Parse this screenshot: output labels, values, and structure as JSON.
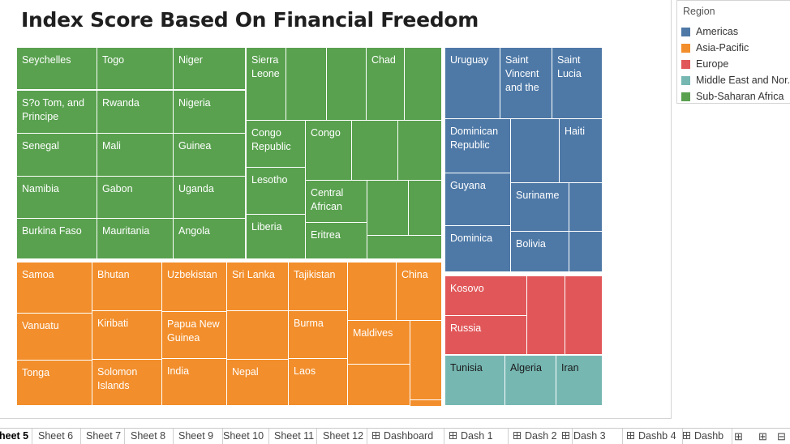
{
  "title": "Index Score Based On Financial Freedom",
  "colors": {
    "Americas": "#4e79a7",
    "Asia-Pacific": "#f28e2b",
    "Europe": "#e15759",
    "Middle East and North Africa": "#76b7b2",
    "Sub-Saharan Africa": "#59a14f"
  },
  "legend": {
    "title": "Region",
    "items": [
      {
        "label": "Americas",
        "color": "#4e79a7"
      },
      {
        "label": "Asia-Pacific",
        "color": "#f28e2b"
      },
      {
        "label": "Europe",
        "color": "#e15759"
      },
      {
        "label": "Middle East and Nor..",
        "color": "#76b7b2"
      },
      {
        "label": "Sub-Saharan Africa",
        "color": "#59a14f"
      }
    ]
  },
  "tabs": [
    {
      "label": "heet 5",
      "active": true,
      "icon": ""
    },
    {
      "label": "Sheet 6",
      "icon": ""
    },
    {
      "label": "Sheet 7",
      "icon": ""
    },
    {
      "label": "Sheet 8",
      "icon": ""
    },
    {
      "label": "Sheet 9",
      "icon": ""
    },
    {
      "label": "Sheet 10",
      "icon": ""
    },
    {
      "label": "Sheet 11",
      "icon": ""
    },
    {
      "label": "Sheet 12",
      "icon": ""
    },
    {
      "label": "Dashboard",
      "icon": "dashboard-icon"
    },
    {
      "label": "Dash 1",
      "icon": "dashboard-icon"
    },
    {
      "label": "Dash 2",
      "icon": "dashboard-icon"
    },
    {
      "label": "Dash 3",
      "icon": "dashboard-icon"
    },
    {
      "label": "Dashb 4",
      "icon": "dashboard-icon"
    },
    {
      "label": "Dashb",
      "icon": "dashboard-icon"
    }
  ],
  "tab_buttons": [
    {
      "name": "new-worksheet-icon",
      "glyph": "⊞"
    },
    {
      "name": "new-dashboard-icon",
      "glyph": "⊞"
    },
    {
      "name": "new-story-icon",
      "glyph": "⊟"
    }
  ],
  "cells": [
    {
      "region": "Sub-Saharan Africa",
      "label": "Seychelles"
    },
    {
      "region": "Sub-Saharan Africa",
      "label": "Togo"
    },
    {
      "region": "Sub-Saharan Africa",
      "label": "Niger"
    },
    {
      "region": "Sub-Saharan Africa",
      "label": "Sierra Leone"
    },
    {
      "region": "Sub-Saharan Africa",
      "label": ""
    },
    {
      "region": "Sub-Saharan Africa",
      "label": ""
    },
    {
      "region": "Sub-Saharan Africa",
      "label": "Chad"
    },
    {
      "region": "Sub-Saharan Africa",
      "label": ""
    },
    {
      "region": "Sub-Saharan Africa",
      "label": "S?o Tom, and Principe"
    },
    {
      "region": "Sub-Saharan Africa",
      "label": "Rwanda"
    },
    {
      "region": "Sub-Saharan Africa",
      "label": "Nigeria"
    },
    {
      "region": "Sub-Saharan Africa",
      "label": "Congo Republic"
    },
    {
      "region": "Sub-Saharan Africa",
      "label": "Congo"
    },
    {
      "region": "Sub-Saharan Africa",
      "label": ""
    },
    {
      "region": "Sub-Saharan Africa",
      "label": ""
    },
    {
      "region": "Sub-Saharan Africa",
      "label": "Senegal"
    },
    {
      "region": "Sub-Saharan Africa",
      "label": "Mali"
    },
    {
      "region": "Sub-Saharan Africa",
      "label": "Guinea"
    },
    {
      "region": "Sub-Saharan Africa",
      "label": "Lesotho"
    },
    {
      "region": "Sub-Saharan Africa",
      "label": "Namibia"
    },
    {
      "region": "Sub-Saharan Africa",
      "label": "Gabon"
    },
    {
      "region": "Sub-Saharan Africa",
      "label": "Uganda"
    },
    {
      "region": "Sub-Saharan Africa",
      "label": "Central African"
    },
    {
      "region": "Sub-Saharan Africa",
      "label": ""
    },
    {
      "region": "Sub-Saharan Africa",
      "label": ""
    },
    {
      "region": "Sub-Saharan Africa",
      "label": "Liberia"
    },
    {
      "region": "Sub-Saharan Africa",
      "label": "Burkina Faso"
    },
    {
      "region": "Sub-Saharan Africa",
      "label": "Mauritania"
    },
    {
      "region": "Sub-Saharan Africa",
      "label": "Angola"
    },
    {
      "region": "Sub-Saharan Africa",
      "label": "Eritrea"
    },
    {
      "region": "Sub-Saharan Africa",
      "label": ""
    },
    {
      "region": "Americas",
      "label": "Uruguay"
    },
    {
      "region": "Americas",
      "label": "Saint Vincent and the"
    },
    {
      "region": "Americas",
      "label": "Saint Lucia"
    },
    {
      "region": "Americas",
      "label": "Dominican Republic"
    },
    {
      "region": "Americas",
      "label": ""
    },
    {
      "region": "Americas",
      "label": "Haiti"
    },
    {
      "region": "Americas",
      "label": "Guyana"
    },
    {
      "region": "Americas",
      "label": "Suriname"
    },
    {
      "region": "Americas",
      "label": ""
    },
    {
      "region": "Americas",
      "label": "Dominica"
    },
    {
      "region": "Americas",
      "label": "Bolivia"
    },
    {
      "region": "Americas",
      "label": ""
    },
    {
      "region": "Asia-Pacific",
      "label": "Samoa"
    },
    {
      "region": "Asia-Pacific",
      "label": "Bhutan"
    },
    {
      "region": "Asia-Pacific",
      "label": "Uzbekistan"
    },
    {
      "region": "Asia-Pacific",
      "label": "Sri Lanka"
    },
    {
      "region": "Asia-Pacific",
      "label": "Tajikistan"
    },
    {
      "region": "Asia-Pacific",
      "label": ""
    },
    {
      "region": "Asia-Pacific",
      "label": "China"
    },
    {
      "region": "Asia-Pacific",
      "label": "Vanuatu"
    },
    {
      "region": "Asia-Pacific",
      "label": "Kiribati"
    },
    {
      "region": "Asia-Pacific",
      "label": "Papua New Guinea"
    },
    {
      "region": "Asia-Pacific",
      "label": ""
    },
    {
      "region": "Asia-Pacific",
      "label": "Burma"
    },
    {
      "region": "Asia-Pacific",
      "label": "Maldives"
    },
    {
      "region": "Asia-Pacific",
      "label": ""
    },
    {
      "region": "Asia-Pacific",
      "label": "Tonga"
    },
    {
      "region": "Asia-Pacific",
      "label": "Solomon Islands"
    },
    {
      "region": "Asia-Pacific",
      "label": "India"
    },
    {
      "region": "Asia-Pacific",
      "label": "Nepal"
    },
    {
      "region": "Asia-Pacific",
      "label": "Laos"
    },
    {
      "region": "Asia-Pacific",
      "label": ""
    },
    {
      "region": "Asia-Pacific",
      "label": ""
    },
    {
      "region": "Europe",
      "label": "Kosovo"
    },
    {
      "region": "Europe",
      "label": ""
    },
    {
      "region": "Europe",
      "label": ""
    },
    {
      "region": "Europe",
      "label": "Russia"
    },
    {
      "region": "Middle East and North Africa",
      "label": "Tunisia"
    },
    {
      "region": "Middle East and North Africa",
      "label": "Algeria"
    },
    {
      "region": "Middle East and North Africa",
      "label": "Iran"
    }
  ]
}
